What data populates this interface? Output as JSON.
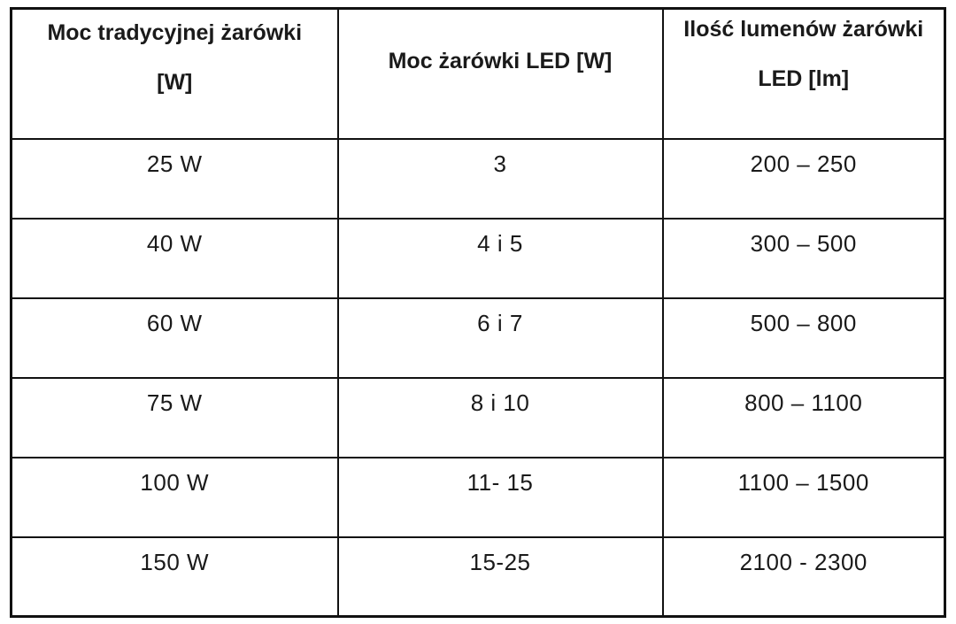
{
  "page": {
    "background_color": "#ffffff",
    "text_color": "#1a1a1a",
    "border_color": "#111111"
  },
  "table": {
    "headers": [
      {
        "line1": "Moc tradycyjnej żarówki",
        "line2": "[W]"
      },
      {
        "line1": "Moc żarówki LED [W]",
        "line2": ""
      },
      {
        "line1": "Ilość lumenów żarówki",
        "line2": "LED [lm]"
      }
    ],
    "rows": [
      {
        "traditional_w": "25 W",
        "led_w": "3",
        "lumens": "200 – 250"
      },
      {
        "traditional_w": "40 W",
        "led_w": "4 i 5",
        "lumens": "300 – 500"
      },
      {
        "traditional_w": "60 W",
        "led_w": "6 i 7",
        "lumens": "500 – 800"
      },
      {
        "traditional_w": "75 W",
        "led_w": "8 i 10",
        "lumens": "800 – 1100"
      },
      {
        "traditional_w": "100 W",
        "led_w": "11- 15",
        "lumens": "1100 – 1500"
      },
      {
        "traditional_w": "150 W",
        "led_w": "15-25",
        "lumens": "2100 - 2300"
      }
    ]
  }
}
